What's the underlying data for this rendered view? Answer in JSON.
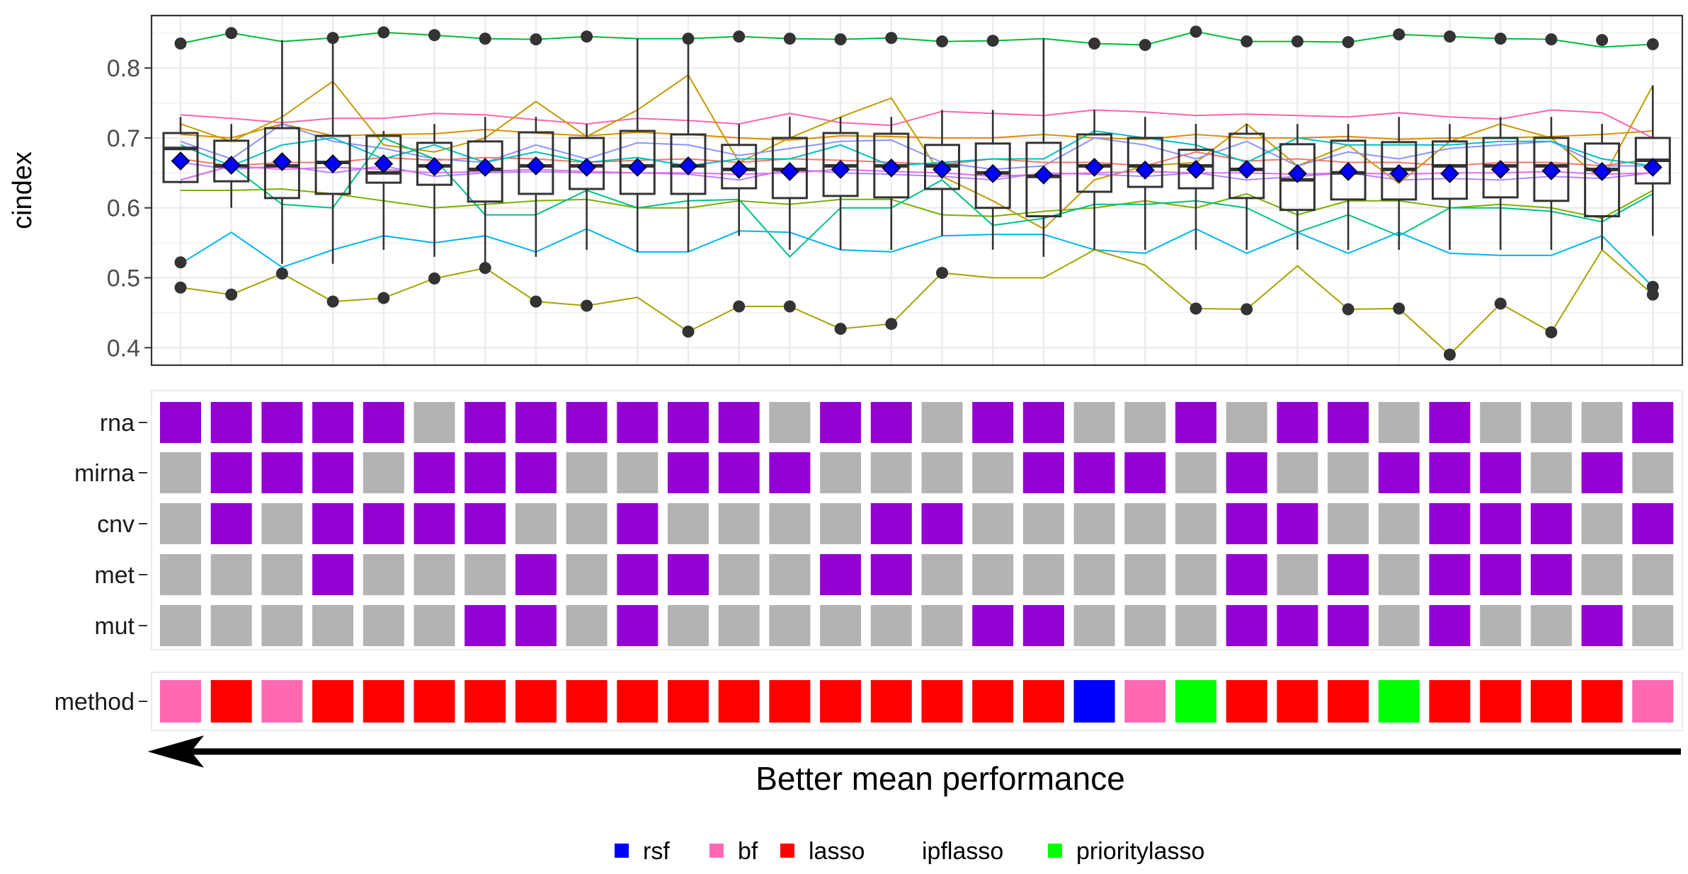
{
  "chart_data": {
    "type": "box",
    "ylabel": "cindex",
    "ylim": [
      0.375,
      0.875
    ],
    "yticks": [
      0.4,
      0.5,
      0.6,
      0.7,
      0.8
    ],
    "ytick_labels": [
      "0.4",
      "0.5",
      "0.6",
      "0.7",
      "0.8"
    ],
    "grid": true,
    "n_configs": 30,
    "means": [
      0.667,
      0.661,
      0.666,
      0.663,
      0.663,
      0.659,
      0.658,
      0.66,
      0.658,
      0.658,
      0.66,
      0.655,
      0.652,
      0.655,
      0.657,
      0.655,
      0.649,
      0.647,
      0.658,
      0.654,
      0.655,
      0.655,
      0.649,
      0.652,
      0.649,
      0.649,
      0.655,
      0.653,
      0.652,
      0.658
    ],
    "boxes": [
      {
        "q1": 0.637,
        "median": 0.685,
        "q3": 0.707,
        "wmin": 0.635,
        "wmax": 0.73
      },
      {
        "q1": 0.638,
        "median": 0.66,
        "q3": 0.696,
        "wmin": 0.6,
        "wmax": 0.72
      },
      {
        "q1": 0.614,
        "median": 0.66,
        "q3": 0.714,
        "wmin": 0.52,
        "wmax": 0.84
      },
      {
        "q1": 0.62,
        "median": 0.665,
        "q3": 0.703,
        "wmin": 0.52,
        "wmax": 0.84
      },
      {
        "q1": 0.636,
        "median": 0.65,
        "q3": 0.703,
        "wmin": 0.54,
        "wmax": 0.71
      },
      {
        "q1": 0.633,
        "median": 0.66,
        "q3": 0.693,
        "wmin": 0.53,
        "wmax": 0.72
      },
      {
        "q1": 0.609,
        "median": 0.655,
        "q3": 0.695,
        "wmin": 0.52,
        "wmax": 0.73
      },
      {
        "q1": 0.62,
        "median": 0.66,
        "q3": 0.708,
        "wmin": 0.53,
        "wmax": 0.73
      },
      {
        "q1": 0.627,
        "median": 0.66,
        "q3": 0.7,
        "wmin": 0.54,
        "wmax": 0.72
      },
      {
        "q1": 0.62,
        "median": 0.66,
        "q3": 0.71,
        "wmin": 0.537,
        "wmax": 0.842
      },
      {
        "q1": 0.62,
        "median": 0.66,
        "q3": 0.705,
        "wmin": 0.537,
        "wmax": 0.842
      },
      {
        "q1": 0.628,
        "median": 0.655,
        "q3": 0.69,
        "wmin": 0.56,
        "wmax": 0.72
      },
      {
        "q1": 0.614,
        "median": 0.655,
        "q3": 0.7,
        "wmin": 0.54,
        "wmax": 0.73
      },
      {
        "q1": 0.617,
        "median": 0.66,
        "q3": 0.707,
        "wmin": 0.54,
        "wmax": 0.73
      },
      {
        "q1": 0.615,
        "median": 0.66,
        "q3": 0.706,
        "wmin": 0.54,
        "wmax": 0.73
      },
      {
        "q1": 0.627,
        "median": 0.66,
        "q3": 0.69,
        "wmin": 0.56,
        "wmax": 0.74
      },
      {
        "q1": 0.6,
        "median": 0.65,
        "q3": 0.692,
        "wmin": 0.54,
        "wmax": 0.74
      },
      {
        "q1": 0.588,
        "median": 0.645,
        "q3": 0.693,
        "wmin": 0.53,
        "wmax": 0.842
      },
      {
        "q1": 0.623,
        "median": 0.66,
        "q3": 0.705,
        "wmin": 0.54,
        "wmax": 0.74
      },
      {
        "q1": 0.63,
        "median": 0.66,
        "q3": 0.7,
        "wmin": 0.54,
        "wmax": 0.73
      },
      {
        "q1": 0.628,
        "median": 0.66,
        "q3": 0.683,
        "wmin": 0.54,
        "wmax": 0.72
      },
      {
        "q1": 0.614,
        "median": 0.655,
        "q3": 0.706,
        "wmin": 0.54,
        "wmax": 0.72
      },
      {
        "q1": 0.597,
        "median": 0.64,
        "q3": 0.691,
        "wmin": 0.54,
        "wmax": 0.72
      },
      {
        "q1": 0.612,
        "median": 0.65,
        "q3": 0.696,
        "wmin": 0.54,
        "wmax": 0.72
      },
      {
        "q1": 0.612,
        "median": 0.655,
        "q3": 0.694,
        "wmin": 0.54,
        "wmax": 0.73
      },
      {
        "q1": 0.613,
        "median": 0.66,
        "q3": 0.695,
        "wmin": 0.54,
        "wmax": 0.72
      },
      {
        "q1": 0.615,
        "median": 0.66,
        "q3": 0.7,
        "wmin": 0.54,
        "wmax": 0.73
      },
      {
        "q1": 0.61,
        "median": 0.66,
        "q3": 0.7,
        "wmin": 0.54,
        "wmax": 0.73
      },
      {
        "q1": 0.588,
        "median": 0.655,
        "q3": 0.692,
        "wmin": 0.54,
        "wmax": 0.72
      },
      {
        "q1": 0.635,
        "median": 0.668,
        "q3": 0.7,
        "wmin": 0.56,
        "wmax": 0.775
      }
    ],
    "outliers": [
      [
        0,
        0.835
      ],
      [
        0,
        0.522
      ],
      [
        0,
        0.486
      ],
      [
        1,
        0.85
      ],
      [
        1,
        0.476
      ],
      [
        2,
        0.506
      ],
      [
        3,
        0.843
      ],
      [
        3,
        0.466
      ],
      [
        4,
        0.851
      ],
      [
        4,
        0.471
      ],
      [
        5,
        0.847
      ],
      [
        5,
        0.499
      ],
      [
        6,
        0.842
      ],
      [
        6,
        0.514
      ],
      [
        7,
        0.841
      ],
      [
        7,
        0.466
      ],
      [
        8,
        0.845
      ],
      [
        8,
        0.46
      ],
      [
        10,
        0.842
      ],
      [
        10,
        0.423
      ],
      [
        11,
        0.845
      ],
      [
        11,
        0.459
      ],
      [
        12,
        0.842
      ],
      [
        12,
        0.459
      ],
      [
        13,
        0.841
      ],
      [
        13,
        0.427
      ],
      [
        14,
        0.843
      ],
      [
        14,
        0.434
      ],
      [
        15,
        0.838
      ],
      [
        15,
        0.507
      ],
      [
        16,
        0.839
      ],
      [
        18,
        0.835
      ],
      [
        19,
        0.833
      ],
      [
        20,
        0.852
      ],
      [
        20,
        0.456
      ],
      [
        21,
        0.838
      ],
      [
        21,
        0.455
      ],
      [
        22,
        0.838
      ],
      [
        23,
        0.837
      ],
      [
        23,
        0.455
      ],
      [
        24,
        0.848
      ],
      [
        24,
        0.456
      ],
      [
        25,
        0.845
      ],
      [
        25,
        0.39
      ],
      [
        26,
        0.842
      ],
      [
        26,
        0.463
      ],
      [
        27,
        0.841
      ],
      [
        27,
        0.422
      ],
      [
        28,
        0.84
      ],
      [
        29,
        0.834
      ],
      [
        29,
        0.487
      ],
      [
        29,
        0.476
      ]
    ],
    "series": [
      {
        "color": "#00BA38",
        "values": [
          0.835,
          0.85,
          0.838,
          0.843,
          0.851,
          0.847,
          0.842,
          0.841,
          0.845,
          0.842,
          0.842,
          0.845,
          0.842,
          0.841,
          0.843,
          0.838,
          0.839,
          0.842,
          0.835,
          0.833,
          0.852,
          0.838,
          0.838,
          0.837,
          0.848,
          0.845,
          0.842,
          0.841,
          0.83,
          0.834
        ]
      },
      {
        "color": "#FF64B0",
        "values": [
          0.733,
          0.728,
          0.722,
          0.728,
          0.728,
          0.735,
          0.733,
          0.726,
          0.72,
          0.728,
          0.725,
          0.72,
          0.735,
          0.722,
          0.718,
          0.738,
          0.735,
          0.732,
          0.74,
          0.737,
          0.732,
          0.734,
          0.732,
          0.73,
          0.736,
          0.73,
          0.727,
          0.74,
          0.736,
          0.7
        ]
      },
      {
        "color": "#DE8C00",
        "values": [
          0.705,
          0.7,
          0.72,
          0.703,
          0.705,
          0.706,
          0.712,
          0.707,
          0.703,
          0.708,
          0.705,
          0.7,
          0.697,
          0.703,
          0.702,
          0.7,
          0.7,
          0.705,
          0.7,
          0.698,
          0.705,
          0.7,
          0.7,
          0.702,
          0.698,
          0.7,
          0.7,
          0.702,
          0.705,
          0.71
        ]
      },
      {
        "color": "#C49A00",
        "values": [
          0.72,
          0.695,
          0.73,
          0.781,
          0.69,
          0.68,
          0.7,
          0.752,
          0.702,
          0.74,
          0.79,
          0.665,
          0.7,
          0.73,
          0.757,
          0.645,
          0.61,
          0.57,
          0.64,
          0.66,
          0.665,
          0.72,
          0.66,
          0.69,
          0.635,
          0.695,
          0.72,
          0.7,
          0.64,
          0.775
        ]
      },
      {
        "color": "#8B93FF",
        "values": [
          0.695,
          0.67,
          0.72,
          0.695,
          0.685,
          0.67,
          0.665,
          0.69,
          0.67,
          0.693,
          0.69,
          0.675,
          0.685,
          0.695,
          0.697,
          0.665,
          0.655,
          0.66,
          0.7,
          0.69,
          0.67,
          0.695,
          0.66,
          0.68,
          0.67,
          0.685,
          0.69,
          0.695,
          0.66,
          0.66
        ]
      },
      {
        "color": "#F8766D",
        "values": [
          0.67,
          0.66,
          0.665,
          0.665,
          0.672,
          0.668,
          0.672,
          0.67,
          0.665,
          0.668,
          0.67,
          0.665,
          0.67,
          0.668,
          0.665,
          0.662,
          0.67,
          0.665,
          0.665,
          0.66,
          0.68,
          0.667,
          0.67,
          0.665,
          0.665,
          0.66,
          0.665,
          0.665,
          0.66,
          0.67
        ]
      },
      {
        "color": "#00BFC4",
        "values": [
          0.69,
          0.66,
          0.69,
          0.7,
          0.67,
          0.69,
          0.665,
          0.68,
          0.665,
          0.672,
          0.66,
          0.67,
          0.67,
          0.69,
          0.66,
          0.665,
          0.67,
          0.67,
          0.71,
          0.7,
          0.69,
          0.665,
          0.7,
          0.69,
          0.69,
          0.69,
          0.695,
          0.695,
          0.67,
          0.66
        ]
      },
      {
        "color": "#B385FF",
        "values": [
          0.665,
          0.655,
          0.66,
          0.65,
          0.66,
          0.645,
          0.65,
          0.652,
          0.65,
          0.65,
          0.648,
          0.64,
          0.655,
          0.65,
          0.648,
          0.645,
          0.64,
          0.65,
          0.648,
          0.645,
          0.65,
          0.64,
          0.645,
          0.65,
          0.64,
          0.642,
          0.64,
          0.645,
          0.642,
          0.65
        ]
      },
      {
        "color": "#7CAE00",
        "values": [
          0.625,
          0.625,
          0.627,
          0.62,
          0.61,
          0.6,
          0.605,
          0.61,
          0.612,
          0.6,
          0.6,
          0.61,
          0.605,
          0.612,
          0.612,
          0.59,
          0.588,
          0.595,
          0.6,
          0.61,
          0.6,
          0.62,
          0.59,
          0.61,
          0.61,
          0.6,
          0.605,
          0.6,
          0.585,
          0.625
        ]
      },
      {
        "color": "#00C08B",
        "values": [
          0.64,
          0.66,
          0.605,
          0.6,
          0.7,
          0.67,
          0.59,
          0.59,
          0.625,
          0.6,
          0.61,
          0.612,
          0.53,
          0.6,
          0.6,
          0.64,
          0.575,
          0.585,
          0.605,
          0.605,
          0.61,
          0.6,
          0.565,
          0.59,
          0.56,
          0.6,
          0.6,
          0.595,
          0.58,
          0.62
        ]
      },
      {
        "color": "#00B4F0",
        "values": [
          0.52,
          0.565,
          0.515,
          0.54,
          0.56,
          0.55,
          0.56,
          0.537,
          0.57,
          0.537,
          0.537,
          0.567,
          0.565,
          0.54,
          0.537,
          0.56,
          0.562,
          0.562,
          0.54,
          0.535,
          0.57,
          0.535,
          0.565,
          0.535,
          0.565,
          0.535,
          0.532,
          0.532,
          0.56,
          0.487
        ]
      },
      {
        "color": "#A3A500",
        "values": [
          0.486,
          0.476,
          0.506,
          0.466,
          0.471,
          0.499,
          0.514,
          0.466,
          0.46,
          0.472,
          0.423,
          0.459,
          0.459,
          0.427,
          0.434,
          0.507,
          0.5,
          0.5,
          0.54,
          0.518,
          0.456,
          0.455,
          0.517,
          0.455,
          0.456,
          0.39,
          0.463,
          0.422,
          0.54,
          0.476
        ]
      },
      {
        "color": "#E76BF3",
        "values": [
          0.64,
          0.66,
          0.655,
          0.658,
          0.655,
          0.65,
          0.652,
          0.655,
          0.652,
          0.65,
          0.65,
          0.648,
          0.65,
          0.655,
          0.652,
          0.65,
          0.645,
          0.648,
          0.65,
          0.652,
          0.65,
          0.65,
          0.648,
          0.65,
          0.648,
          0.65,
          0.65,
          0.652,
          0.648,
          0.65
        ]
      }
    ],
    "tile_rows": [
      {
        "label": "rna",
        "values": [
          1,
          1,
          1,
          1,
          1,
          0,
          1,
          1,
          1,
          1,
          1,
          1,
          0,
          1,
          1,
          0,
          1,
          1,
          0,
          0,
          1,
          0,
          1,
          1,
          0,
          1,
          0,
          0,
          0,
          1
        ]
      },
      {
        "label": "mirna",
        "values": [
          0,
          1,
          1,
          1,
          0,
          1,
          1,
          1,
          0,
          0,
          1,
          1,
          1,
          0,
          0,
          0,
          0,
          1,
          1,
          1,
          0,
          1,
          0,
          0,
          1,
          1,
          1,
          0,
          1,
          0
        ]
      },
      {
        "label": "cnv",
        "values": [
          0,
          1,
          0,
          1,
          1,
          1,
          1,
          0,
          0,
          1,
          0,
          0,
          0,
          0,
          1,
          1,
          0,
          0,
          0,
          0,
          0,
          1,
          1,
          0,
          0,
          1,
          1,
          1,
          0,
          1
        ]
      },
      {
        "label": "met",
        "values": [
          0,
          0,
          0,
          1,
          0,
          0,
          0,
          1,
          0,
          1,
          1,
          0,
          0,
          1,
          1,
          0,
          0,
          0,
          0,
          0,
          0,
          1,
          0,
          1,
          0,
          1,
          1,
          1,
          0,
          0
        ]
      },
      {
        "label": "mut",
        "values": [
          0,
          0,
          0,
          0,
          0,
          0,
          1,
          1,
          0,
          1,
          0,
          0,
          0,
          0,
          0,
          0,
          1,
          1,
          0,
          0,
          0,
          1,
          1,
          1,
          0,
          1,
          0,
          0,
          1,
          0
        ]
      }
    ],
    "method_label": "method",
    "methods": [
      "bf",
      "lasso",
      "bf",
      "lasso",
      "lasso",
      "lasso",
      "lasso",
      "lasso",
      "lasso",
      "lasso",
      "lasso",
      "lasso",
      "lasso",
      "lasso",
      "lasso",
      "lasso",
      "lasso",
      "lasso",
      "rsf",
      "bf",
      "prioritylasso",
      "lasso",
      "lasso",
      "lasso",
      "prioritylasso",
      "lasso",
      "lasso",
      "lasso",
      "lasso",
      "bf"
    ],
    "tile_colors": {
      "on": "#9400D3",
      "off": "#B3B3B3"
    },
    "method_colors": {
      "rsf": "#0000FF",
      "bf": "#FF69B4",
      "lasso": "#FF0000",
      "ipflasso": "#FFFFFF",
      "prioritylasso": "#00FF00"
    },
    "mean_marker_color": "#0000FF",
    "arrow_label": "Better mean performance",
    "legend": [
      {
        "name": "rsf",
        "color": "#0000FF"
      },
      {
        "name": "bf",
        "color": "#FF69B4"
      },
      {
        "name": "lasso",
        "color": "#FF0000"
      },
      {
        "name": "ipflasso",
        "color": "#FFFFFF"
      },
      {
        "name": "prioritylasso",
        "color": "#00FF00"
      }
    ]
  }
}
